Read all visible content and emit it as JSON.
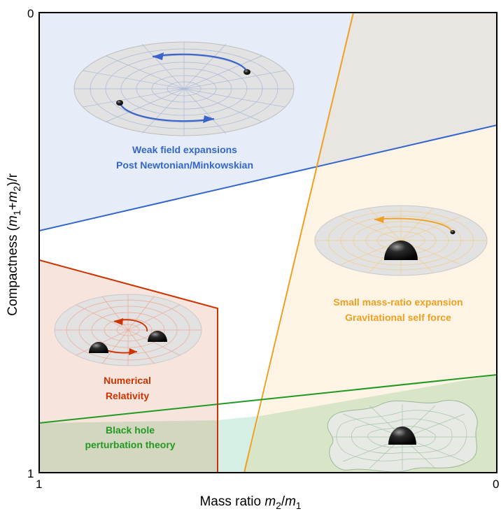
{
  "axes": {
    "x_title_prefix": "Mass ratio ",
    "x_title_m2": "m",
    "x_title_m2_sub": "2",
    "x_title_sep": "/",
    "x_title_m1": "m",
    "x_title_m1_sub": "1",
    "y_title_prefix": "Compactness (",
    "y_title_m1": "m",
    "y_title_m1_sub": "1",
    "y_title_plus": "+",
    "y_title_m2": "m",
    "y_title_m2_sub": "2",
    "y_title_suffix": ")/r",
    "x_tick_left": "1",
    "x_tick_right": "0",
    "y_tick_top": "0",
    "y_tick_bottom": "1"
  },
  "regions": {
    "weak_field": {
      "line1": "Weak field expansions",
      "line2": "Post Newtonian/Minkowskian",
      "color": "#3366cc"
    },
    "self_force": {
      "line1": "Small mass-ratio expansion",
      "line2": "Gravitational self force",
      "color": "#f0a020"
    },
    "numerical": {
      "line1": "Numerical",
      "line2": "Relativity",
      "color": "#cc3300"
    },
    "perturbation": {
      "line1": "Black hole",
      "line2": "perturbation theory",
      "color": "#229922"
    }
  },
  "icons": {
    "weak": "binary-orbit-icon",
    "self_force": "emri-orbit-icon",
    "numerical": "merging-binary-icon",
    "perturbation": "perturbed-black-hole-icon"
  }
}
